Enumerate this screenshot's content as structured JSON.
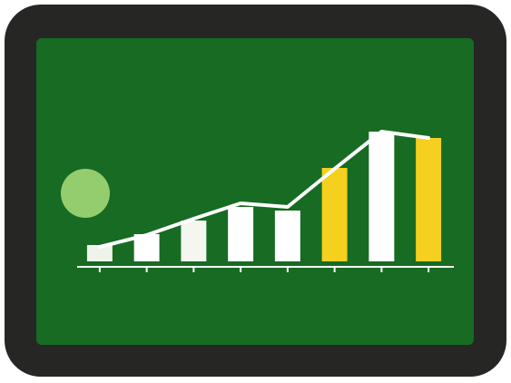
{
  "chart_data": {
    "type": "bar",
    "categories": [
      null,
      null,
      null,
      null,
      null,
      null,
      null,
      null
    ],
    "values": [
      18,
      30,
      45,
      60,
      56,
      103,
      143,
      136
    ],
    "colors": [
      "#eef4ea",
      "#ffffff",
      "#f3f7f0",
      "#ffffff",
      "#ffffff",
      "#f5d01e",
      "#ffffff",
      "#f5d01e"
    ],
    "line": {
      "color": "#ffffff",
      "values": [
        16,
        29,
        47,
        64,
        60,
        102,
        143,
        136
      ]
    },
    "ylim": [
      0,
      160
    ]
  }
}
